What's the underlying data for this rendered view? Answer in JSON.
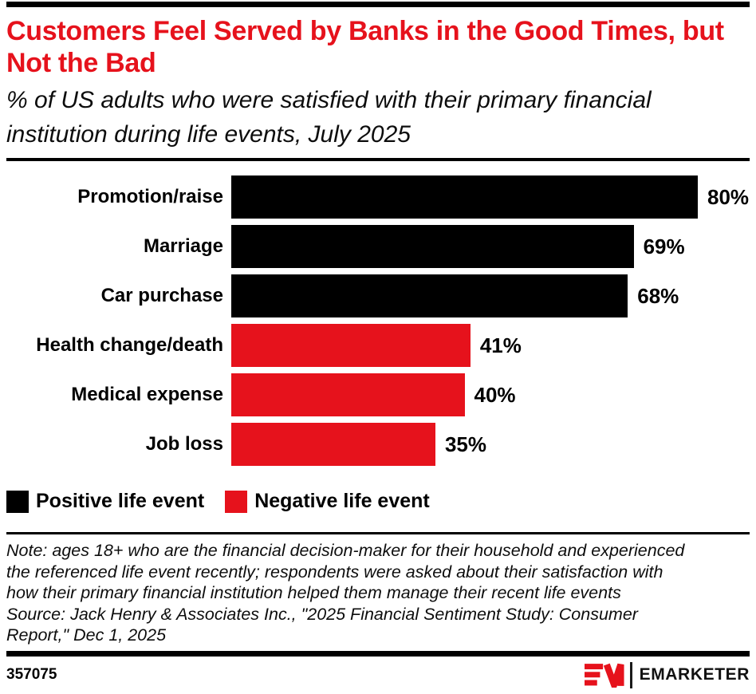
{
  "header": {
    "title": "Customers Feel Served by Banks in the Good Times, but Not the Bad",
    "subtitle": "% of US adults who were satisfied with their primary financial institution during life events, July 2025"
  },
  "chart_data": {
    "type": "bar",
    "orientation": "horizontal",
    "categories": [
      "Promotion/raise",
      "Marriage",
      "Car purchase",
      "Health change/death",
      "Medical expense",
      "Job loss"
    ],
    "values": [
      80,
      69,
      68,
      41,
      40,
      35
    ],
    "value_labels": [
      "80%",
      "69%",
      "68%",
      "41%",
      "40%",
      "35%"
    ],
    "bar_series": [
      "positive",
      "positive",
      "positive",
      "negative",
      "negative",
      "negative"
    ],
    "series_colors": {
      "positive": "#000000",
      "negative": "#E6121C"
    },
    "xlim": [
      0,
      100
    ],
    "grid": false,
    "legend_position": "bottom",
    "title": "Customers Feel Served by Banks in the Good Times, but Not the Bad",
    "xlabel": "",
    "ylabel": ""
  },
  "legend": {
    "items": [
      {
        "label": "Positive life event",
        "color": "#000000"
      },
      {
        "label": "Negative life event",
        "color": "#E6121C"
      }
    ]
  },
  "note": {
    "lines": [
      "Note: ages 18+ who are the financial decision-maker for their household and experienced",
      "the referenced life event recently; respondents were asked about their satisfaction with",
      "how their primary financial institution helped them manage their recent life events",
      "Source: Jack Henry & Associates Inc., \"2025 Financial Sentiment Study: Consumer",
      "Report,\" Dec 1, 2025"
    ]
  },
  "footer": {
    "chart_id": "357075",
    "brand_name": "EMARKETER"
  },
  "colors": {
    "accent_red": "#E6121C",
    "bar_black": "#000000"
  }
}
